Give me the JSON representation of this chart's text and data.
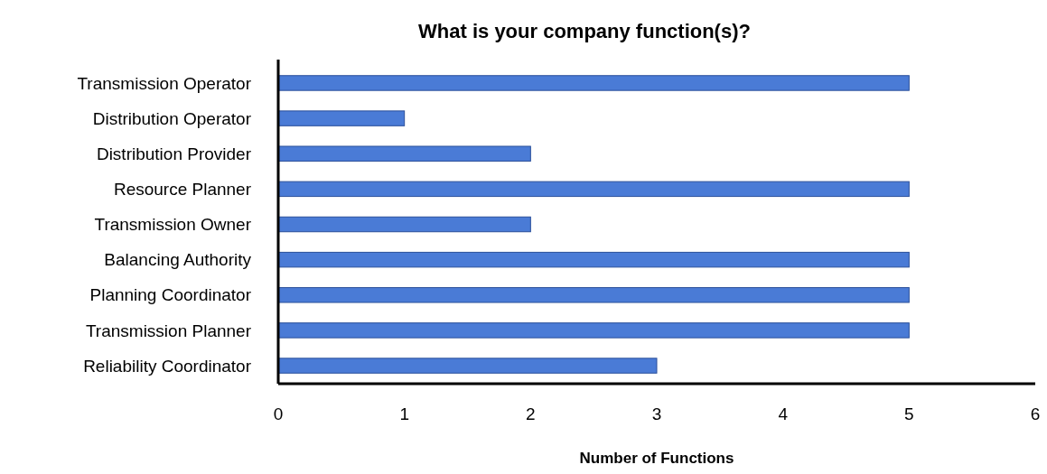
{
  "chart_data": {
    "type": "bar",
    "orientation": "horizontal",
    "title": "What is your company function(s)?",
    "xlabel": "Number of Functions",
    "categories": [
      "Transmission Operator",
      "Distribution Operator",
      "Distribution Provider",
      "Resource Planner",
      "Transmission Owner",
      "Balancing Authority",
      "Planning Coordinator",
      "Transmission Planner",
      "Reliability Coordinator"
    ],
    "values": [
      5,
      1,
      2,
      5,
      2,
      5,
      5,
      5,
      3
    ],
    "color": "#4a7bd6",
    "xlim": [
      0,
      6
    ],
    "xticks": [
      0,
      1,
      2,
      3,
      4,
      5,
      6
    ],
    "grid": false
  }
}
